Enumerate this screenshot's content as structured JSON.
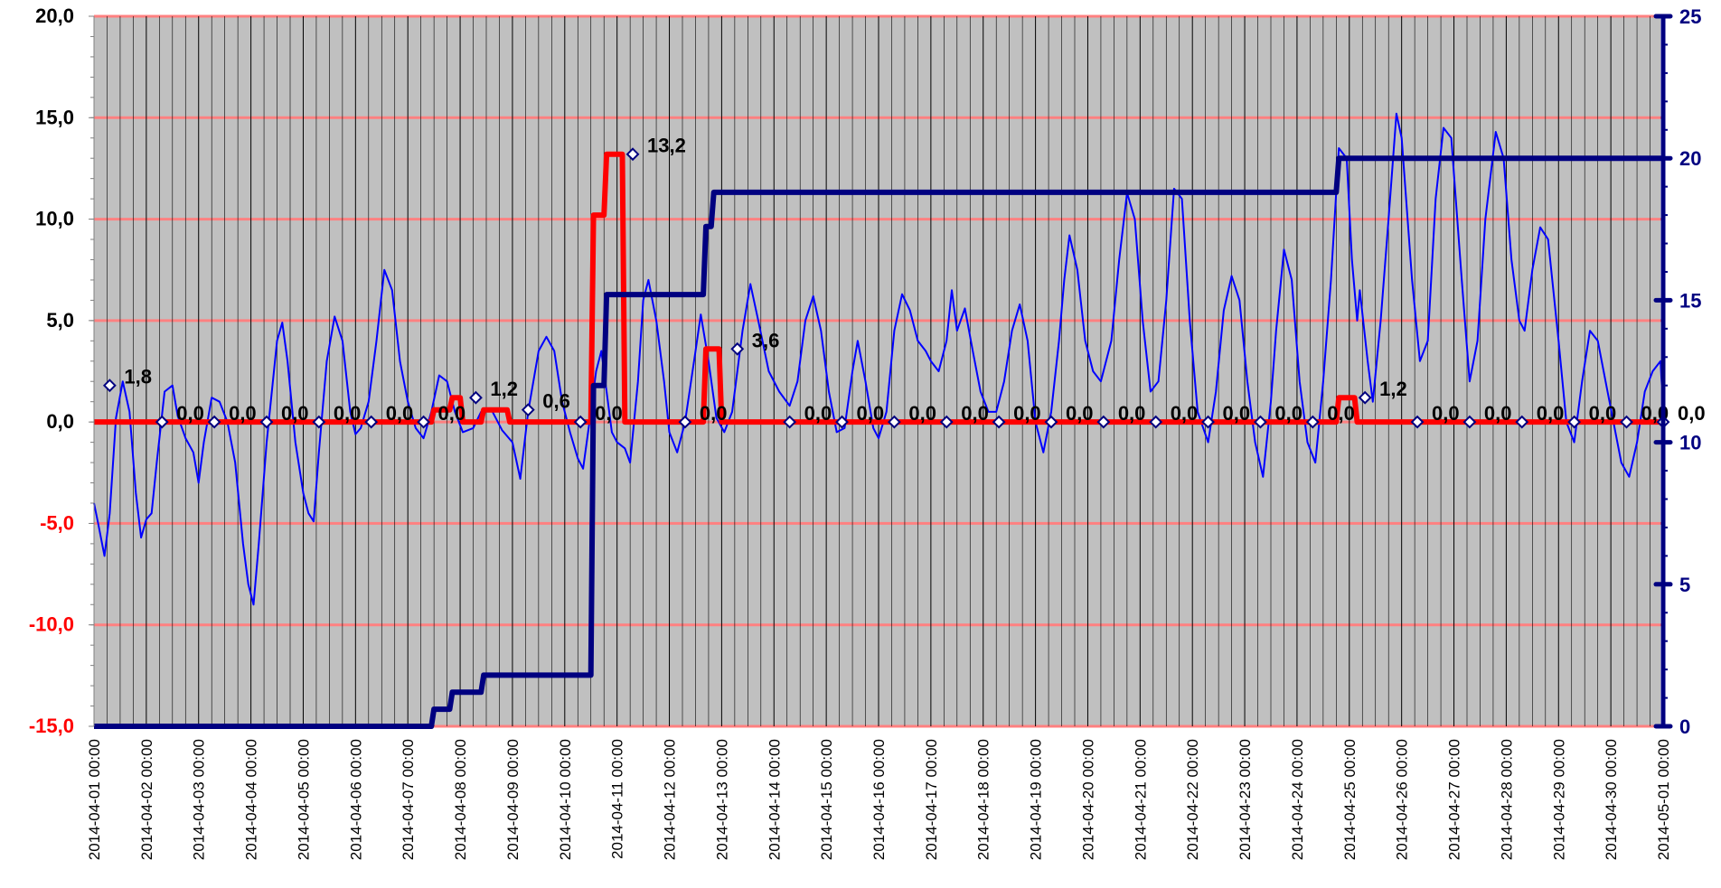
{
  "chart_data": {
    "type": "line",
    "title": "",
    "xlabel": "",
    "ylabel": "",
    "x_ticks": [
      "2014-04-01 00:00",
      "2014-04-02 00:00",
      "2014-04-03 00:00",
      "2014-04-04 00:00",
      "2014-04-05 00:00",
      "2014-04-06 00:00",
      "2014-04-07 00:00",
      "2014-04-08 00:00",
      "2014-04-09 00:00",
      "2014-04-10 00:00",
      "2014-04-11 00:00",
      "2014-04-12 00:00",
      "2014-04-13 00:00",
      "2014-04-14 00:00",
      "2014-04-15 00:00",
      "2014-04-16 00:00",
      "2014-04-17 00:00",
      "2014-04-18 00:00",
      "2014-04-19 00:00",
      "2014-04-20 00:00",
      "2014-04-21 00:00",
      "2014-04-22 00:00",
      "2014-04-23 00:00",
      "2014-04-24 00:00",
      "2014-04-25 00:00",
      "2014-04-26 00:00",
      "2014-04-27 00:00",
      "2014-04-28 00:00",
      "2014-04-29 00:00",
      "2014-04-30 00:00",
      "2014-05-01 00:00"
    ],
    "x_range_days": [
      0,
      30
    ],
    "y_left": {
      "ylim": [
        -15,
        20
      ],
      "ticks": [
        "-15,0",
        "-10,0",
        "-5,0",
        "0,0",
        "5,0",
        "10,0",
        "15,0",
        "20,0"
      ],
      "negative_color": "#ff0000"
    },
    "y_right": {
      "ylim": [
        0,
        25
      ],
      "ticks": [
        "0",
        "5",
        "10",
        "15",
        "20",
        "25"
      ],
      "color": "#000080"
    },
    "grid": true,
    "colors": {
      "plot_bg": "#c0c0c0",
      "gridline": "#ff8080",
      "vline": "#000000",
      "temperature": "#0000ff",
      "daily_precip": "#ff0000",
      "cumulative_precip": "#000080",
      "marker_fill": "#ffffff",
      "marker_edge": "#000080"
    },
    "series": [
      {
        "axis": "left",
        "kind": "thin-line",
        "points": [
          [
            0.0,
            -4.0
          ],
          [
            0.08,
            -5.0
          ],
          [
            0.2,
            -6.6
          ],
          [
            0.3,
            -4.5
          ],
          [
            0.42,
            0.2
          ],
          [
            0.55,
            2.0
          ],
          [
            0.68,
            0.5
          ],
          [
            0.8,
            -3.5
          ],
          [
            0.9,
            -5.7
          ],
          [
            1.0,
            -4.8
          ],
          [
            1.1,
            -4.5
          ],
          [
            1.2,
            -2.0
          ],
          [
            1.35,
            1.5
          ],
          [
            1.5,
            1.8
          ],
          [
            1.6,
            0.3
          ],
          [
            1.75,
            -0.8
          ],
          [
            1.9,
            -1.5
          ],
          [
            2.0,
            -3.0
          ],
          [
            2.1,
            -1.0
          ],
          [
            2.25,
            1.2
          ],
          [
            2.4,
            1.0
          ],
          [
            2.55,
            0.0
          ],
          [
            2.7,
            -2.0
          ],
          [
            2.85,
            -6.0
          ],
          [
            2.95,
            -8.0
          ],
          [
            3.05,
            -9.0
          ],
          [
            3.15,
            -6.0
          ],
          [
            3.3,
            -1.0
          ],
          [
            3.5,
            4.0
          ],
          [
            3.6,
            4.9
          ],
          [
            3.7,
            3.0
          ],
          [
            3.85,
            -1.0
          ],
          [
            4.0,
            -3.5
          ],
          [
            4.1,
            -4.5
          ],
          [
            4.2,
            -4.9
          ],
          [
            4.3,
            -1.5
          ],
          [
            4.45,
            3.0
          ],
          [
            4.6,
            5.2
          ],
          [
            4.75,
            4.0
          ],
          [
            4.9,
            0.5
          ],
          [
            5.0,
            -0.6
          ],
          [
            5.1,
            -0.3
          ],
          [
            5.25,
            1.0
          ],
          [
            5.4,
            4.0
          ],
          [
            5.55,
            7.5
          ],
          [
            5.7,
            6.5
          ],
          [
            5.85,
            3.0
          ],
          [
            6.0,
            1.0
          ],
          [
            6.15,
            -0.3
          ],
          [
            6.3,
            -0.8
          ],
          [
            6.45,
            0.5
          ],
          [
            6.6,
            2.3
          ],
          [
            6.75,
            2.0
          ],
          [
            6.9,
            0.5
          ],
          [
            7.05,
            -0.5
          ],
          [
            7.25,
            -0.3
          ],
          [
            7.4,
            0.5
          ],
          [
            7.6,
            0.6
          ],
          [
            7.8,
            -0.4
          ],
          [
            8.0,
            -1.0
          ],
          [
            8.15,
            -2.8
          ],
          [
            8.3,
            0.5
          ],
          [
            8.5,
            3.5
          ],
          [
            8.65,
            4.2
          ],
          [
            8.8,
            3.5
          ],
          [
            8.95,
            1.0
          ],
          [
            9.1,
            -0.5
          ],
          [
            9.25,
            -1.8
          ],
          [
            9.35,
            -2.3
          ],
          [
            9.5,
            0.5
          ],
          [
            9.6,
            2.5
          ],
          [
            9.7,
            3.5
          ],
          [
            9.8,
            1.5
          ],
          [
            9.9,
            -0.5
          ],
          [
            10.0,
            -1.0
          ],
          [
            10.15,
            -1.3
          ],
          [
            10.25,
            -2.0
          ],
          [
            10.4,
            2.0
          ],
          [
            10.5,
            6.0
          ],
          [
            10.6,
            7.0
          ],
          [
            10.75,
            5.0
          ],
          [
            10.9,
            2.0
          ],
          [
            11.0,
            -0.5
          ],
          [
            11.15,
            -1.5
          ],
          [
            11.3,
            0.0
          ],
          [
            11.5,
            3.5
          ],
          [
            11.6,
            5.3
          ],
          [
            11.75,
            3.0
          ],
          [
            11.9,
            0.2
          ],
          [
            12.05,
            -0.5
          ],
          [
            12.2,
            0.5
          ],
          [
            12.4,
            4.5
          ],
          [
            12.55,
            6.8
          ],
          [
            12.7,
            5.0
          ],
          [
            12.9,
            2.5
          ],
          [
            13.1,
            1.5
          ],
          [
            13.3,
            0.8
          ],
          [
            13.45,
            2.0
          ],
          [
            13.6,
            5.0
          ],
          [
            13.75,
            6.2
          ],
          [
            13.9,
            4.5
          ],
          [
            14.05,
            1.5
          ],
          [
            14.2,
            -0.5
          ],
          [
            14.35,
            -0.3
          ],
          [
            14.5,
            2.5
          ],
          [
            14.6,
            4.0
          ],
          [
            14.75,
            2.0
          ],
          [
            14.9,
            -0.3
          ],
          [
            15.0,
            -0.8
          ],
          [
            15.15,
            0.5
          ],
          [
            15.3,
            4.5
          ],
          [
            15.45,
            6.3
          ],
          [
            15.6,
            5.5
          ],
          [
            15.75,
            4.0
          ],
          [
            15.9,
            3.5
          ],
          [
            16.0,
            3.0
          ],
          [
            16.15,
            2.5
          ],
          [
            16.3,
            4.0
          ],
          [
            16.4,
            6.5
          ],
          [
            16.5,
            4.5
          ],
          [
            16.65,
            5.6
          ],
          [
            16.8,
            3.5
          ],
          [
            16.95,
            1.5
          ],
          [
            17.1,
            0.5
          ],
          [
            17.25,
            0.5
          ],
          [
            17.4,
            2.0
          ],
          [
            17.55,
            4.5
          ],
          [
            17.7,
            5.8
          ],
          [
            17.85,
            4.0
          ],
          [
            18.0,
            0.0
          ],
          [
            18.15,
            -1.5
          ],
          [
            18.3,
            0.5
          ],
          [
            18.45,
            4.0
          ],
          [
            18.55,
            7.0
          ],
          [
            18.65,
            9.2
          ],
          [
            18.8,
            7.5
          ],
          [
            18.95,
            4.0
          ],
          [
            19.1,
            2.5
          ],
          [
            19.25,
            2.0
          ],
          [
            19.45,
            4.0
          ],
          [
            19.6,
            8.0
          ],
          [
            19.75,
            11.3
          ],
          [
            19.9,
            10.0
          ],
          [
            20.05,
            5.0
          ],
          [
            20.2,
            1.5
          ],
          [
            20.35,
            2.0
          ],
          [
            20.5,
            6.0
          ],
          [
            20.65,
            11.5
          ],
          [
            20.8,
            11.0
          ],
          [
            20.95,
            5.0
          ],
          [
            21.1,
            0.5
          ],
          [
            21.3,
            -1.0
          ],
          [
            21.45,
            1.5
          ],
          [
            21.6,
            5.5
          ],
          [
            21.75,
            7.2
          ],
          [
            21.9,
            6.0
          ],
          [
            22.05,
            2.0
          ],
          [
            22.2,
            -1.0
          ],
          [
            22.35,
            -2.7
          ],
          [
            22.5,
            1.0
          ],
          [
            22.6,
            4.5
          ],
          [
            22.75,
            8.5
          ],
          [
            22.9,
            7.0
          ],
          [
            23.05,
            2.0
          ],
          [
            23.2,
            -1.0
          ],
          [
            23.35,
            -2.0
          ],
          [
            23.5,
            2.0
          ],
          [
            23.65,
            7.0
          ],
          [
            23.8,
            13.5
          ],
          [
            23.95,
            13.0
          ],
          [
            24.05,
            8.0
          ],
          [
            24.15,
            5.0
          ],
          [
            24.2,
            6.5
          ],
          [
            24.35,
            3.0
          ],
          [
            24.45,
            1.0
          ],
          [
            24.6,
            5.0
          ],
          [
            24.75,
            10.0
          ],
          [
            24.9,
            15.2
          ],
          [
            25.0,
            14.0
          ],
          [
            25.2,
            7.0
          ],
          [
            25.35,
            3.0
          ],
          [
            25.5,
            4.0
          ],
          [
            25.65,
            11.0
          ],
          [
            25.8,
            14.5
          ],
          [
            25.95,
            14.0
          ],
          [
            26.15,
            7.0
          ],
          [
            26.3,
            2.0
          ],
          [
            26.45,
            4.0
          ],
          [
            26.6,
            10.0
          ],
          [
            26.8,
            14.3
          ],
          [
            26.95,
            13.0
          ],
          [
            27.1,
            8.0
          ],
          [
            27.25,
            5.0
          ],
          [
            27.35,
            4.5
          ],
          [
            27.5,
            7.5
          ],
          [
            27.65,
            9.6
          ],
          [
            27.8,
            9.0
          ],
          [
            28.0,
            4.0
          ],
          [
            28.15,
            0.0
          ],
          [
            28.3,
            -1.0
          ],
          [
            28.45,
            2.0
          ],
          [
            28.6,
            4.5
          ],
          [
            28.75,
            4.0
          ],
          [
            28.9,
            2.0
          ],
          [
            29.05,
            0.0
          ],
          [
            29.2,
            -2.0
          ],
          [
            29.35,
            -2.7
          ],
          [
            29.5,
            -1.0
          ],
          [
            29.65,
            1.5
          ],
          [
            29.8,
            2.5
          ],
          [
            29.95,
            3.0
          ],
          [
            30.0,
            0.5
          ]
        ]
      },
      {
        "axis": "left",
        "kind": "thick-step",
        "points": [
          [
            0.0,
            0.0
          ],
          [
            6.45,
            0.0
          ],
          [
            6.5,
            0.6
          ],
          [
            6.8,
            0.6
          ],
          [
            6.85,
            1.2
          ],
          [
            7.0,
            1.2
          ],
          [
            7.05,
            0.0
          ],
          [
            7.4,
            0.0
          ],
          [
            7.45,
            0.6
          ],
          [
            7.9,
            0.6
          ],
          [
            7.95,
            0.0
          ],
          [
            9.5,
            0.0
          ],
          [
            9.55,
            10.2
          ],
          [
            9.75,
            10.2
          ],
          [
            9.8,
            13.2
          ],
          [
            10.1,
            13.2
          ],
          [
            10.15,
            0.0
          ],
          [
            11.65,
            0.0
          ],
          [
            11.7,
            3.6
          ],
          [
            11.95,
            3.6
          ],
          [
            12.0,
            0.0
          ],
          [
            23.75,
            0.0
          ],
          [
            23.8,
            1.2
          ],
          [
            24.1,
            1.2
          ],
          [
            24.15,
            0.0
          ],
          [
            30.0,
            0.0
          ]
        ]
      },
      {
        "axis": "right",
        "kind": "thick-step",
        "points": [
          [
            0.0,
            0.0
          ],
          [
            6.45,
            0.0
          ],
          [
            6.5,
            0.6
          ],
          [
            6.8,
            0.6
          ],
          [
            6.85,
            1.2
          ],
          [
            7.4,
            1.2
          ],
          [
            7.45,
            1.8
          ],
          [
            9.5,
            1.8
          ],
          [
            9.55,
            12.0
          ],
          [
            9.75,
            12.0
          ],
          [
            9.8,
            15.2
          ],
          [
            11.65,
            15.2
          ],
          [
            11.7,
            17.6
          ],
          [
            11.8,
            17.6
          ],
          [
            11.85,
            18.8
          ],
          [
            23.75,
            18.8
          ],
          [
            23.8,
            20.0
          ],
          [
            30.0,
            20.0
          ]
        ]
      }
    ],
    "point_labels": [
      {
        "x": 0.3,
        "y": 1.8,
        "text": "1,8"
      },
      {
        "x": 1.3,
        "y": 0.0,
        "text": "0,0"
      },
      {
        "x": 2.3,
        "y": 0.0,
        "text": "0,0"
      },
      {
        "x": 3.3,
        "y": 0.0,
        "text": "0,0"
      },
      {
        "x": 4.3,
        "y": 0.0,
        "text": "0,0"
      },
      {
        "x": 5.3,
        "y": 0.0,
        "text": "0,0"
      },
      {
        "x": 6.3,
        "y": 0.0,
        "text": "0,0"
      },
      {
        "x": 7.3,
        "y": 1.2,
        "text": "1,2"
      },
      {
        "x": 8.3,
        "y": 0.6,
        "text": "0,6"
      },
      {
        "x": 9.3,
        "y": 0.0,
        "text": "0,0"
      },
      {
        "x": 10.3,
        "y": 13.2,
        "text": "13,2"
      },
      {
        "x": 11.3,
        "y": 0.0,
        "text": "0,0"
      },
      {
        "x": 12.3,
        "y": 3.6,
        "text": "3,6"
      },
      {
        "x": 13.3,
        "y": 0.0,
        "text": "0,0"
      },
      {
        "x": 14.3,
        "y": 0.0,
        "text": "0,0"
      },
      {
        "x": 15.3,
        "y": 0.0,
        "text": "0,0"
      },
      {
        "x": 16.3,
        "y": 0.0,
        "text": "0,0"
      },
      {
        "x": 17.3,
        "y": 0.0,
        "text": "0,0"
      },
      {
        "x": 18.3,
        "y": 0.0,
        "text": "0,0"
      },
      {
        "x": 19.3,
        "y": 0.0,
        "text": "0,0"
      },
      {
        "x": 20.3,
        "y": 0.0,
        "text": "0,0"
      },
      {
        "x": 21.3,
        "y": 0.0,
        "text": "0,0"
      },
      {
        "x": 22.3,
        "y": 0.0,
        "text": "0,0"
      },
      {
        "x": 23.3,
        "y": 0.0,
        "text": "0,0"
      },
      {
        "x": 24.3,
        "y": 1.2,
        "text": "1,2"
      },
      {
        "x": 25.3,
        "y": 0.0,
        "text": "0,0"
      },
      {
        "x": 26.3,
        "y": 0.0,
        "text": "0,0"
      },
      {
        "x": 27.3,
        "y": 0.0,
        "text": "0,0"
      },
      {
        "x": 28.3,
        "y": 0.0,
        "text": "0,0"
      },
      {
        "x": 29.3,
        "y": 0.0,
        "text": "0,0"
      },
      {
        "x": 30.0,
        "y": 0.0,
        "text": "0,0"
      }
    ]
  }
}
